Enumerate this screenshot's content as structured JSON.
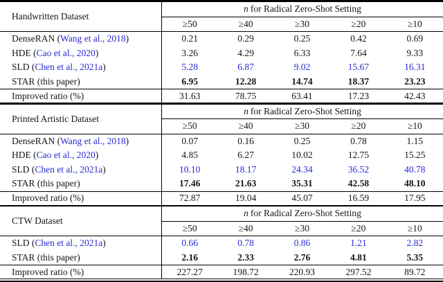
{
  "table": {
    "group_header": {
      "italic": "n",
      "text": "for Radical Zero-Shot Setting"
    },
    "columns": [
      "≥50",
      "≥40",
      "≥30",
      "≥20",
      "≥10"
    ],
    "sections": [
      {
        "label": "Handwritten Dataset",
        "methods": [
          {
            "name": "DenseRAN",
            "cite": "Wang et al., 2018",
            "style": "plain",
            "values": [
              "0.21",
              "0.29",
              "0.25",
              "0.42",
              "0.69"
            ]
          },
          {
            "name": "HDE",
            "cite": "Cao et al., 2020",
            "style": "plain",
            "values": [
              "3.26",
              "4.29",
              "6.33",
              "7.64",
              "9.33"
            ]
          },
          {
            "name": "SLD",
            "cite": "Chen et al., 2021a",
            "style": "blue",
            "values": [
              "5.28",
              "6.87",
              "9.02",
              "15.67",
              "16.31"
            ]
          },
          {
            "name": "STAR",
            "note": "this paper",
            "style": "bold",
            "values": [
              "6.95",
              "12.28",
              "14.74",
              "18.37",
              "23.23"
            ]
          }
        ],
        "improved": {
          "label": "Improved ratio (%)",
          "values": [
            "31.63",
            "78.75",
            "63.41",
            "17.23",
            "42.43"
          ]
        }
      },
      {
        "label": "Printed Artistic Dataset",
        "methods": [
          {
            "name": "DenseRAN",
            "cite": "Wang et al., 2018",
            "style": "plain",
            "values": [
              "0.07",
              "0.16",
              "0.25",
              "0.78",
              "1.15"
            ]
          },
          {
            "name": "HDE",
            "cite": "Cao et al., 2020",
            "style": "plain",
            "values": [
              "4.85",
              "6.27",
              "10.02",
              "12.75",
              "15.25"
            ]
          },
          {
            "name": "SLD",
            "cite": "Chen et al., 2021a",
            "style": "blue",
            "values": [
              "10.10",
              "18.17",
              "24.34",
              "36.52",
              "40.78"
            ]
          },
          {
            "name": "STAR",
            "note": "this paper",
            "style": "bold",
            "values": [
              "17.46",
              "21.63",
              "35.31",
              "42.58",
              "48.10"
            ]
          }
        ],
        "improved": {
          "label": "Improved ratio (%)",
          "values": [
            "72.87",
            "19.04",
            "45.07",
            "16.59",
            "17.95"
          ]
        }
      },
      {
        "label": "CTW Dataset",
        "methods": [
          {
            "name": "SLD",
            "cite": "Chen et al., 2021a",
            "style": "blue",
            "values": [
              "0.66",
              "0.78",
              "0.86",
              "1.21",
              "2.82"
            ]
          },
          {
            "name": "STAR",
            "note": "this paper",
            "style": "bold",
            "values": [
              "2.16",
              "2.33",
              "2.76",
              "4.81",
              "5.35"
            ]
          }
        ],
        "improved": {
          "label": "Improved ratio (%)",
          "values": [
            "227.27",
            "198.72",
            "220.93",
            "297.52",
            "89.72"
          ]
        }
      }
    ]
  },
  "colors": {
    "citation_blue": "#2a2ad2",
    "text": "#161616",
    "rule": "#000000"
  }
}
